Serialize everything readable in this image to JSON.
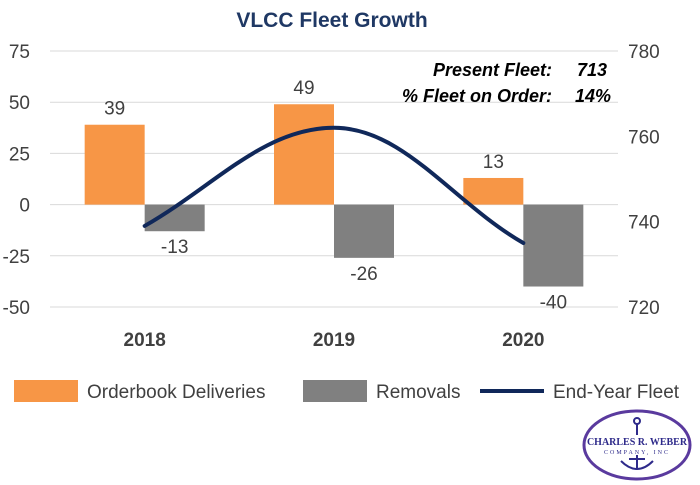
{
  "chart_data": {
    "type": "bar",
    "title": "VLCC Fleet Growth",
    "categories": [
      "2018",
      "2019",
      "2020"
    ],
    "series": [
      {
        "name": "Orderbook Deliveries",
        "kind": "bar",
        "axis": "left",
        "color": "#f79646",
        "values": [
          39,
          49,
          13
        ]
      },
      {
        "name": "Removals",
        "kind": "bar",
        "axis": "left",
        "color": "#808080",
        "values": [
          -13,
          -26,
          -40
        ]
      },
      {
        "name": "End-Year Fleet",
        "kind": "line",
        "axis": "right",
        "color": "#10285a",
        "values": [
          739,
          762,
          735
        ]
      }
    ],
    "y_left": {
      "min": -50,
      "max": 75,
      "ticks": [
        75,
        50,
        25,
        0,
        -25,
        -50
      ]
    },
    "y_right": {
      "min": 720,
      "max": 780,
      "ticks": [
        780,
        760,
        740,
        720
      ]
    },
    "grid": true,
    "legend_position": "bottom",
    "annotations": {
      "present_fleet_label": "Present Fleet:",
      "present_fleet_value": "713",
      "on_order_label": "% Fleet on Order:",
      "on_order_value": "14%"
    }
  },
  "logo": {
    "name": "CHARLES R. WEBER",
    "subtitle": "COMPANY, INC",
    "color": "#2e2a8a"
  }
}
